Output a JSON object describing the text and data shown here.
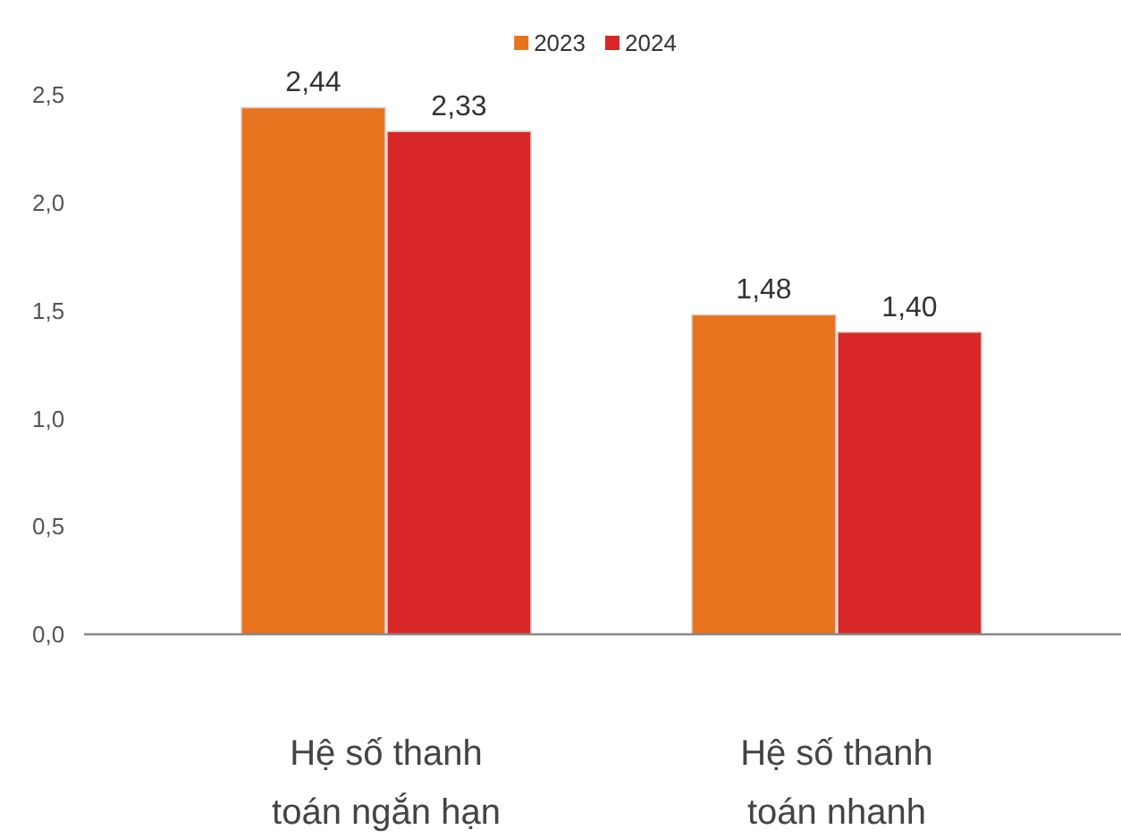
{
  "chart_data": {
    "type": "bar",
    "categories": [
      "Hệ số thanh toán ngắn hạn",
      "Hệ số thanh toán nhanh"
    ],
    "series": [
      {
        "name": "2023",
        "color": "#e8731f",
        "values": [
          2.44,
          1.48
        ],
        "value_labels": [
          "2,44",
          "1,48"
        ]
      },
      {
        "name": "2024",
        "color": "#d92626",
        "values": [
          2.33,
          1.4
        ],
        "value_labels": [
          "2,33",
          "1,40"
        ]
      }
    ],
    "ylim": [
      0,
      2.5
    ],
    "yticks": [
      {
        "value": 0,
        "label": "0,0"
      },
      {
        "value": 0.5,
        "label": "0,5"
      },
      {
        "value": 1,
        "label": "1,0"
      },
      {
        "value": 1.5,
        "label": "1,5"
      },
      {
        "value": 2,
        "label": "2,0"
      },
      {
        "value": 2.5,
        "label": "2,5"
      }
    ],
    "legend": "top",
    "grid": false
  }
}
